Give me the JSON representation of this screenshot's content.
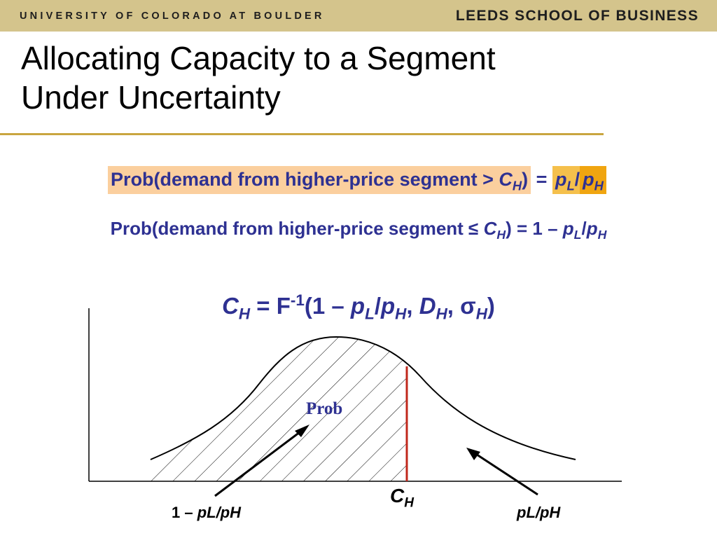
{
  "header": {
    "university": "UNIVERSITY OF COLORADO AT BOULDER",
    "school": "LEEDS SCHOOL OF BUSINESS"
  },
  "slide": {
    "title_line1": "Allocating Capacity to a Segment",
    "title_line2": "Under Uncertainty",
    "eq1": {
      "text": "Prob(demand from higher-price segment > ",
      "var": "C",
      "var_sub": "H",
      "close": ")",
      "equals": " = ",
      "p": "p",
      "p_sub_L": "L",
      "slash": "/",
      "p2": "p",
      "p_sub_H": "H"
    },
    "eq2": {
      "text": "Prob(demand from higher-price segment ",
      "leq": "≤",
      "var": "C",
      "var_sub": "H",
      "rest": ") = 1 – ",
      "p": "p",
      "p_sub_L": "L",
      "slash": "/",
      "p2": "p",
      "p_sub_H": "H"
    },
    "eq3": {
      "c": "C",
      "c_sub": "H",
      "eq": " = F",
      "inv": "-1",
      "open": "(1 – ",
      "p": "p",
      "p_sub_L": "L",
      "slash": "/",
      "p2": "p",
      "p_sub_H": "H",
      "comma1": ", ",
      "d": "D",
      "d_sub": "H",
      "comma2": ", ",
      "sigma": "σ",
      "sigma_sub": "H",
      "close": ")"
    },
    "chart_labels": {
      "prob": "Prob",
      "ch": "C",
      "ch_sub": "H",
      "left_prefix": "1 – ",
      "left_value": "pL/pH",
      "right_value": "pL/pH"
    }
  },
  "colors": {
    "header_band": "#d4c48c",
    "title_rule": "#c9a53f",
    "equation_text": "#2e3192",
    "highlight_light": "#fbcf9e",
    "highlight_mid": "#f5c04c",
    "highlight_dark": "#f0a510",
    "cutoff_line": "#c0281c"
  }
}
